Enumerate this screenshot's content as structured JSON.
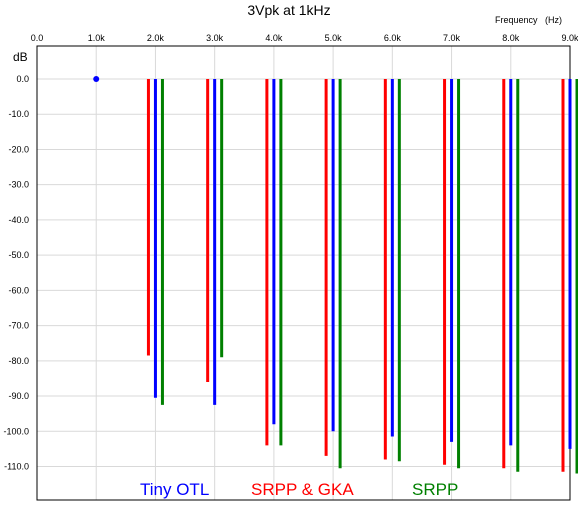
{
  "chart_data": {
    "type": "bar",
    "title": "3Vpk at 1kHz",
    "xlabel": "Frequency   (Hz)",
    "ylabel": "dB",
    "xlim": [
      0,
      9000
    ],
    "ylim": [
      -120,
      0
    ],
    "x_ticks": [
      "0.0",
      "1.0k",
      "2.0k",
      "3.0k",
      "4.0k",
      "5.0k",
      "6.0k",
      "7.0k",
      "8.0k",
      "9.0k"
    ],
    "y_ticks": [
      "0.0",
      "-10.0",
      "-20.0",
      "-30.0",
      "-40.0",
      "-50.0",
      "-60.0",
      "-70.0",
      "-80.0",
      "-90.0",
      "-100.0",
      "-110.0"
    ],
    "grid": true,
    "legend_position": "bottom",
    "fundamental": {
      "x": 1000,
      "y": 0,
      "color": "#0000ff"
    },
    "categories": [
      "2.0k",
      "3.0k",
      "4.0k",
      "5.0k",
      "6.0k",
      "7.0k",
      "8.0k",
      "9.0k"
    ],
    "x": [
      2000,
      3000,
      4000,
      5000,
      6000,
      7000,
      8000,
      9000
    ],
    "series": [
      {
        "name": "SRPP & GKA",
        "color": "#ff0000",
        "values": [
          -78.5,
          -86,
          -104,
          -107,
          -108,
          -109.5,
          -110.5,
          -111.5
        ]
      },
      {
        "name": "Tiny OTL",
        "color": "#0000ff",
        "values": [
          -90.5,
          -92.5,
          -98,
          -100,
          -101.5,
          -103,
          -104,
          -105
        ]
      },
      {
        "name": "SRPP",
        "color": "#008000",
        "values": [
          -92.5,
          -79,
          -104,
          -110.5,
          -108.5,
          -110.5,
          -111.5,
          -112
        ]
      }
    ],
    "legend_order": [
      "Tiny OTL",
      "SRPP & GKA",
      "SRPP"
    ]
  }
}
